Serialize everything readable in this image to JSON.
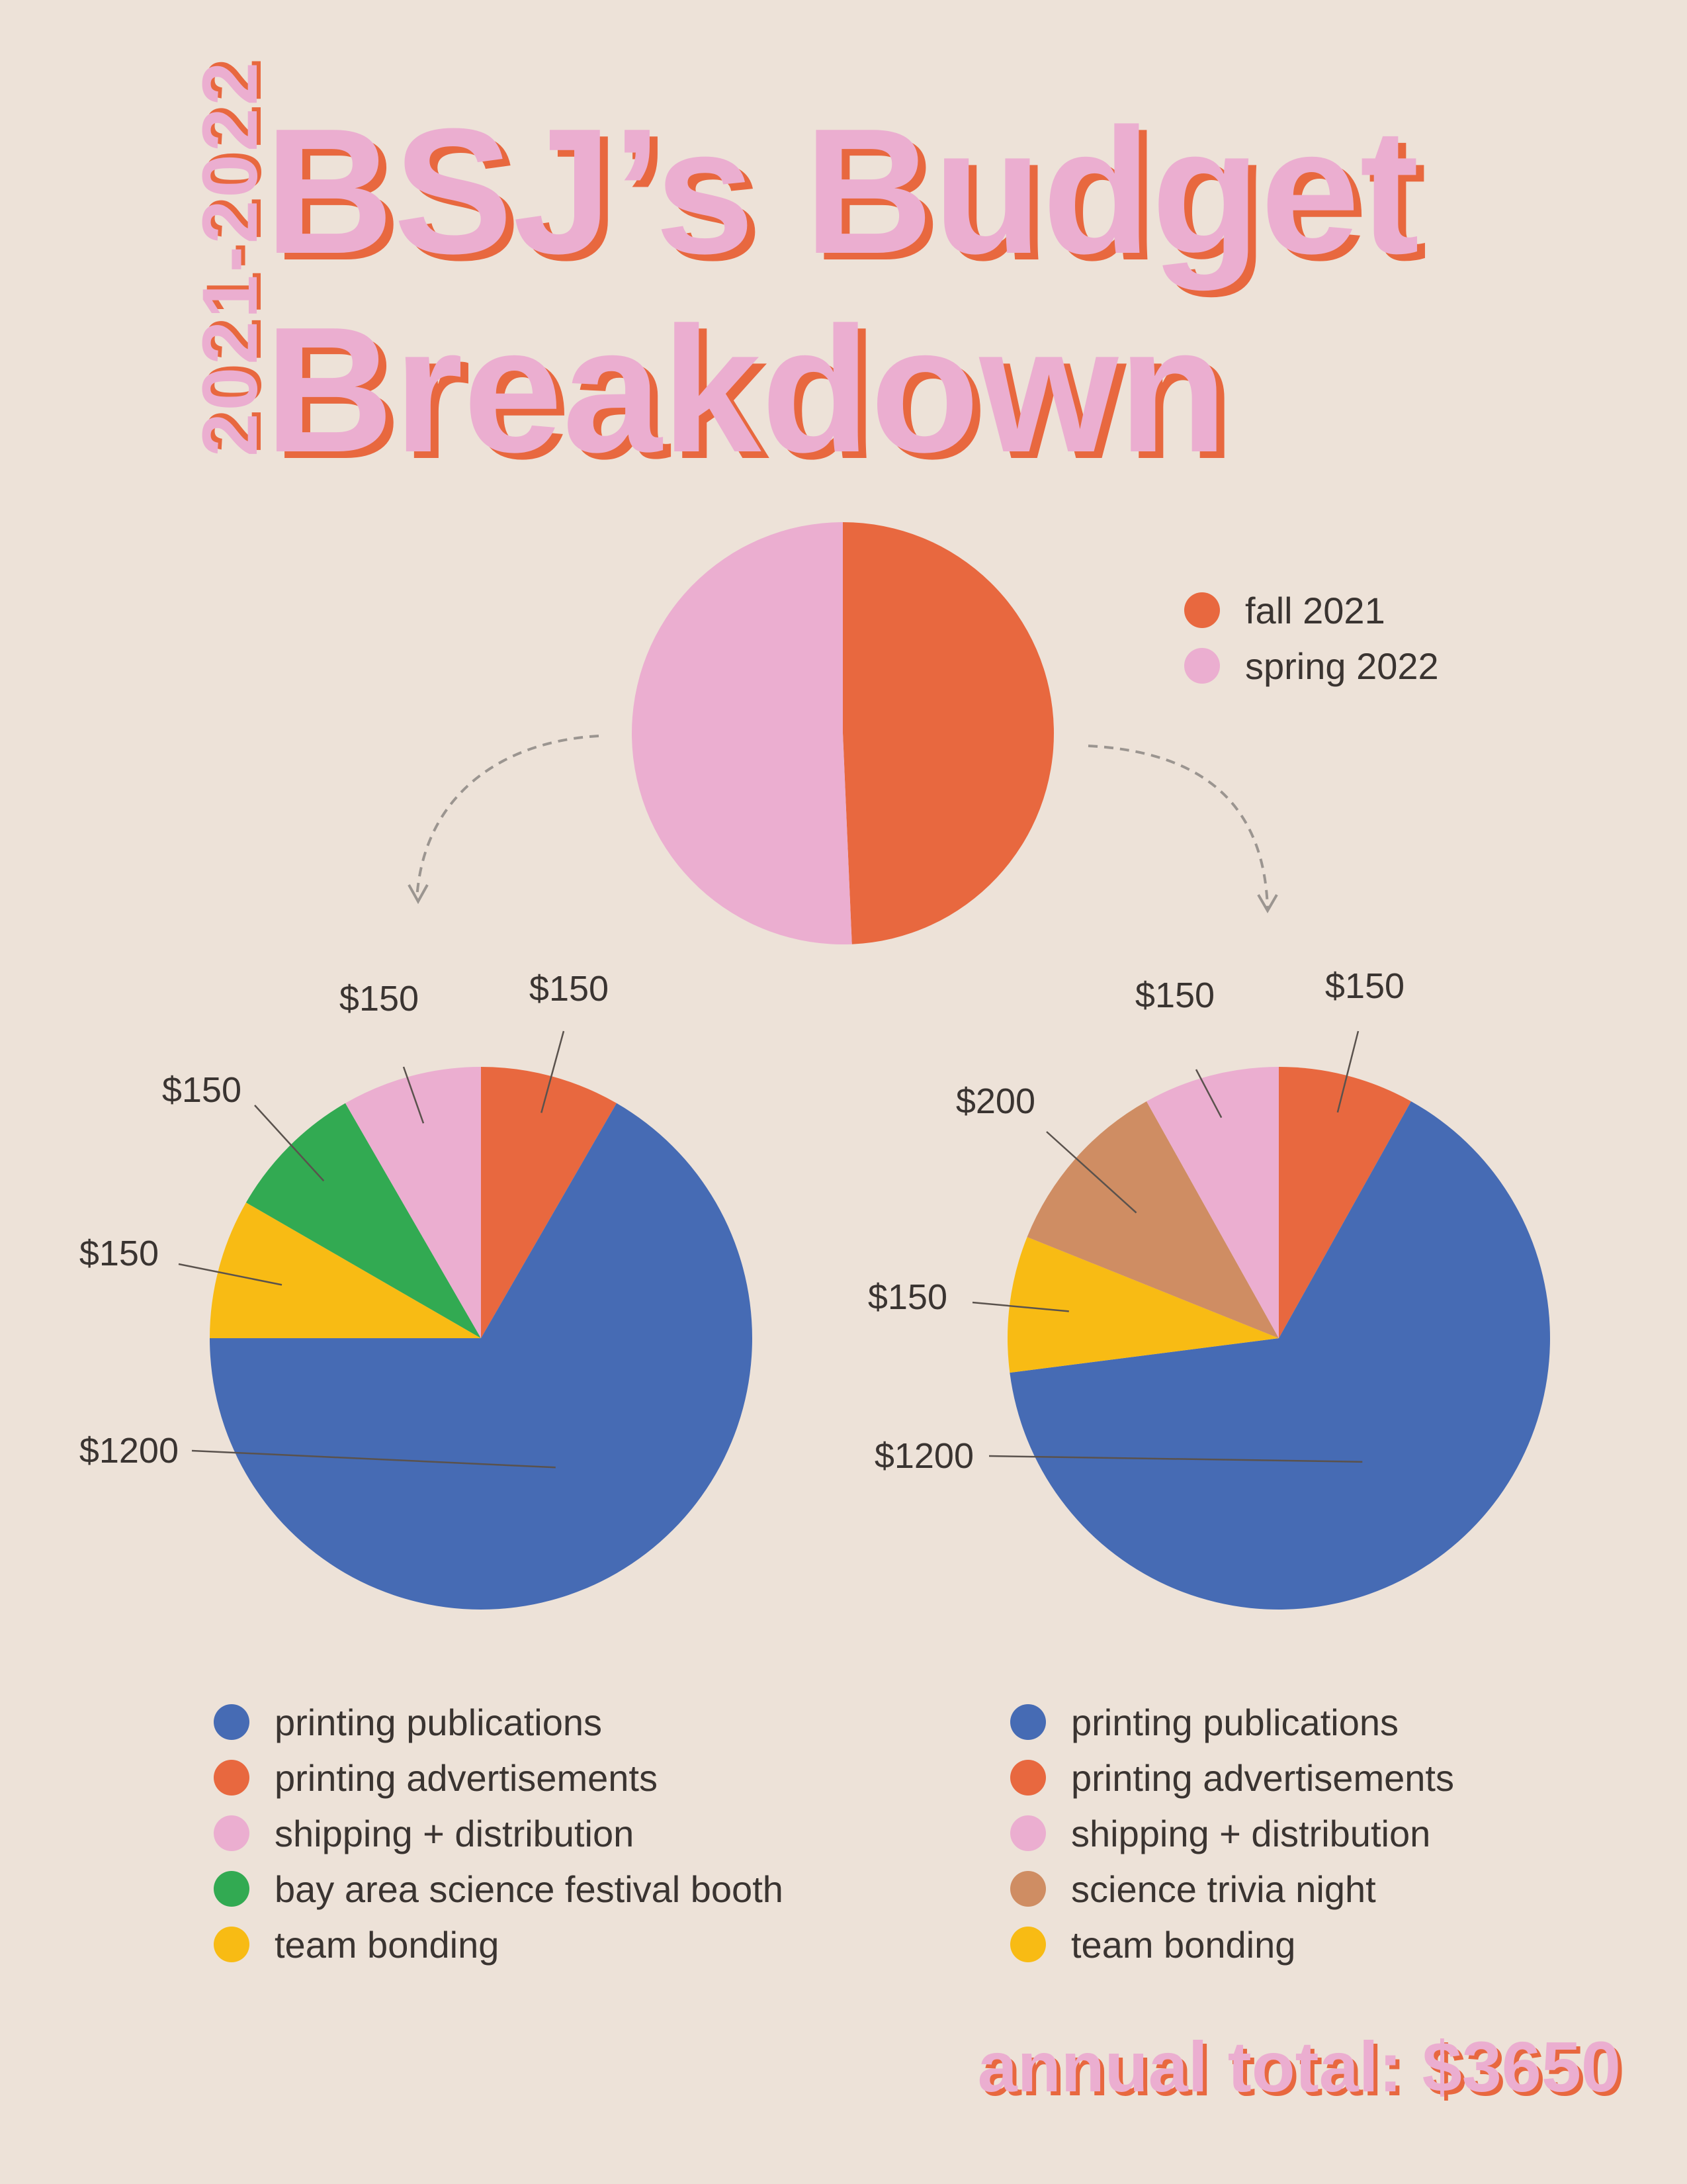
{
  "year": "2021-2022",
  "title_line1": "BSJ’s Budget",
  "title_line2": "Breakdown",
  "total": "annual total: $3650",
  "colors": {
    "background": "#ede2d8",
    "fall": "#e8683f",
    "spring": "#ebaed0",
    "printing_publications": "#466bb4",
    "printing_advertisements": "#e8683f",
    "shipping_distribution": "#ebaed0",
    "festival_booth": "#32aa52",
    "trivia_night": "#cf8d63",
    "team_bonding": "#f8bb14"
  },
  "chart_data": [
    {
      "type": "pie",
      "slices": [
        {
          "label": "fall 2021",
          "value": 1800,
          "color": "#e8683f"
        },
        {
          "label": "spring 2022",
          "value": 1850,
          "color": "#ebaed0"
        }
      ],
      "legend": [
        "fall 2021",
        "spring 2022"
      ]
    },
    {
      "type": "pie",
      "slices": [
        {
          "label": "printing advertisements",
          "value": 150,
          "display": "$150",
          "color": "#e8683f"
        },
        {
          "label": "printing publications",
          "value": 1200,
          "display": "$1200",
          "color": "#466bb4"
        },
        {
          "label": "team bonding",
          "value": 150,
          "display": "$150",
          "color": "#f8bb14"
        },
        {
          "label": "bay area science festival booth",
          "value": 150,
          "display": "$150",
          "color": "#32aa52"
        },
        {
          "label": "shipping + distribution",
          "value": 150,
          "display": "$150",
          "color": "#ebaed0"
        }
      ],
      "legend": [
        "printing publications",
        "printing advertisements",
        "shipping + distribution",
        "bay area science festival booth",
        "team bonding"
      ]
    },
    {
      "type": "pie",
      "slices": [
        {
          "label": "printing advertisements",
          "value": 150,
          "display": "$150",
          "color": "#e8683f"
        },
        {
          "label": "printing publications",
          "value": 1200,
          "display": "$1200",
          "color": "#466bb4"
        },
        {
          "label": "team bonding",
          "value": 150,
          "display": "$150",
          "color": "#f8bb14"
        },
        {
          "label": "science trivia night",
          "value": 200,
          "display": "$200",
          "color": "#cf8d63"
        },
        {
          "label": "shipping + distribution",
          "value": 150,
          "display": "$150",
          "color": "#ebaed0"
        }
      ],
      "legend": [
        "printing publications",
        "printing advertisements",
        "shipping + distribution",
        "science trivia night",
        "team bonding"
      ]
    }
  ]
}
